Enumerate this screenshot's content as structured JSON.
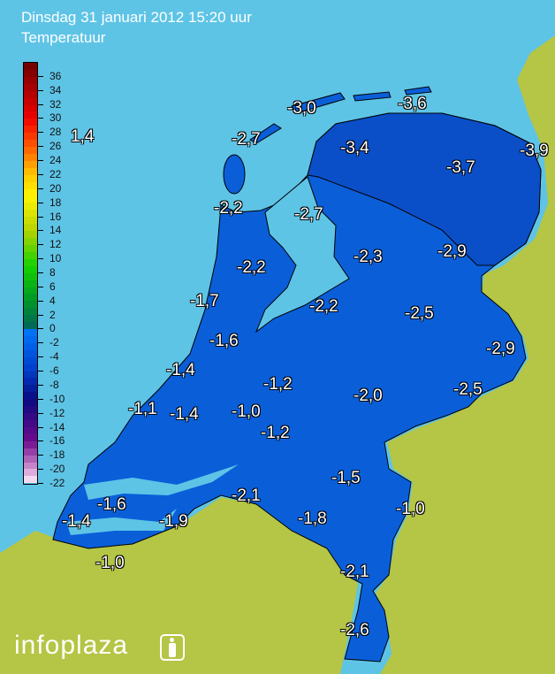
{
  "header": {
    "datetime": "Dinsdag 31 januari 2012 15:20 uur",
    "parameter": "Temperatuur"
  },
  "legend": {
    "ticks": [
      "36",
      "34",
      "32",
      "30",
      "28",
      "26",
      "24",
      "22",
      "20",
      "18",
      "16",
      "14",
      "12",
      "10",
      "8",
      "6",
      "4",
      "2",
      "0",
      "-2",
      "-4",
      "-6",
      "-8",
      "-10",
      "-12",
      "-14",
      "-16",
      "-18",
      "-20",
      "-22"
    ],
    "range": [
      -22,
      38
    ]
  },
  "sea_temperature": "1,4",
  "stations": [
    "-3,0",
    "-3,6",
    "-2,7",
    "-3,4",
    "-3,9",
    "-3,7",
    "-2,2",
    "-2,7",
    "-2,3",
    "-2,9",
    "-2,2",
    "-1,7",
    "-2,2",
    "-2,5",
    "-1,6",
    "-2,9",
    "-1,4",
    "-1,2",
    "-2,0",
    "-2,5",
    "-1,1",
    "-1,4",
    "-1,0",
    "-1,2",
    "-1,5",
    "-2,1",
    "-1,6",
    "-1,8",
    "-1,0",
    "-1,4",
    "-1,9",
    "-2,1",
    "-1,0",
    "-2,6"
  ],
  "colors": {
    "sea": "#5ec4e6",
    "land": "#b5c545",
    "country": "#0a5fd9",
    "north": "#0a4fc8"
  },
  "logo": {
    "text": "infoplaza"
  }
}
